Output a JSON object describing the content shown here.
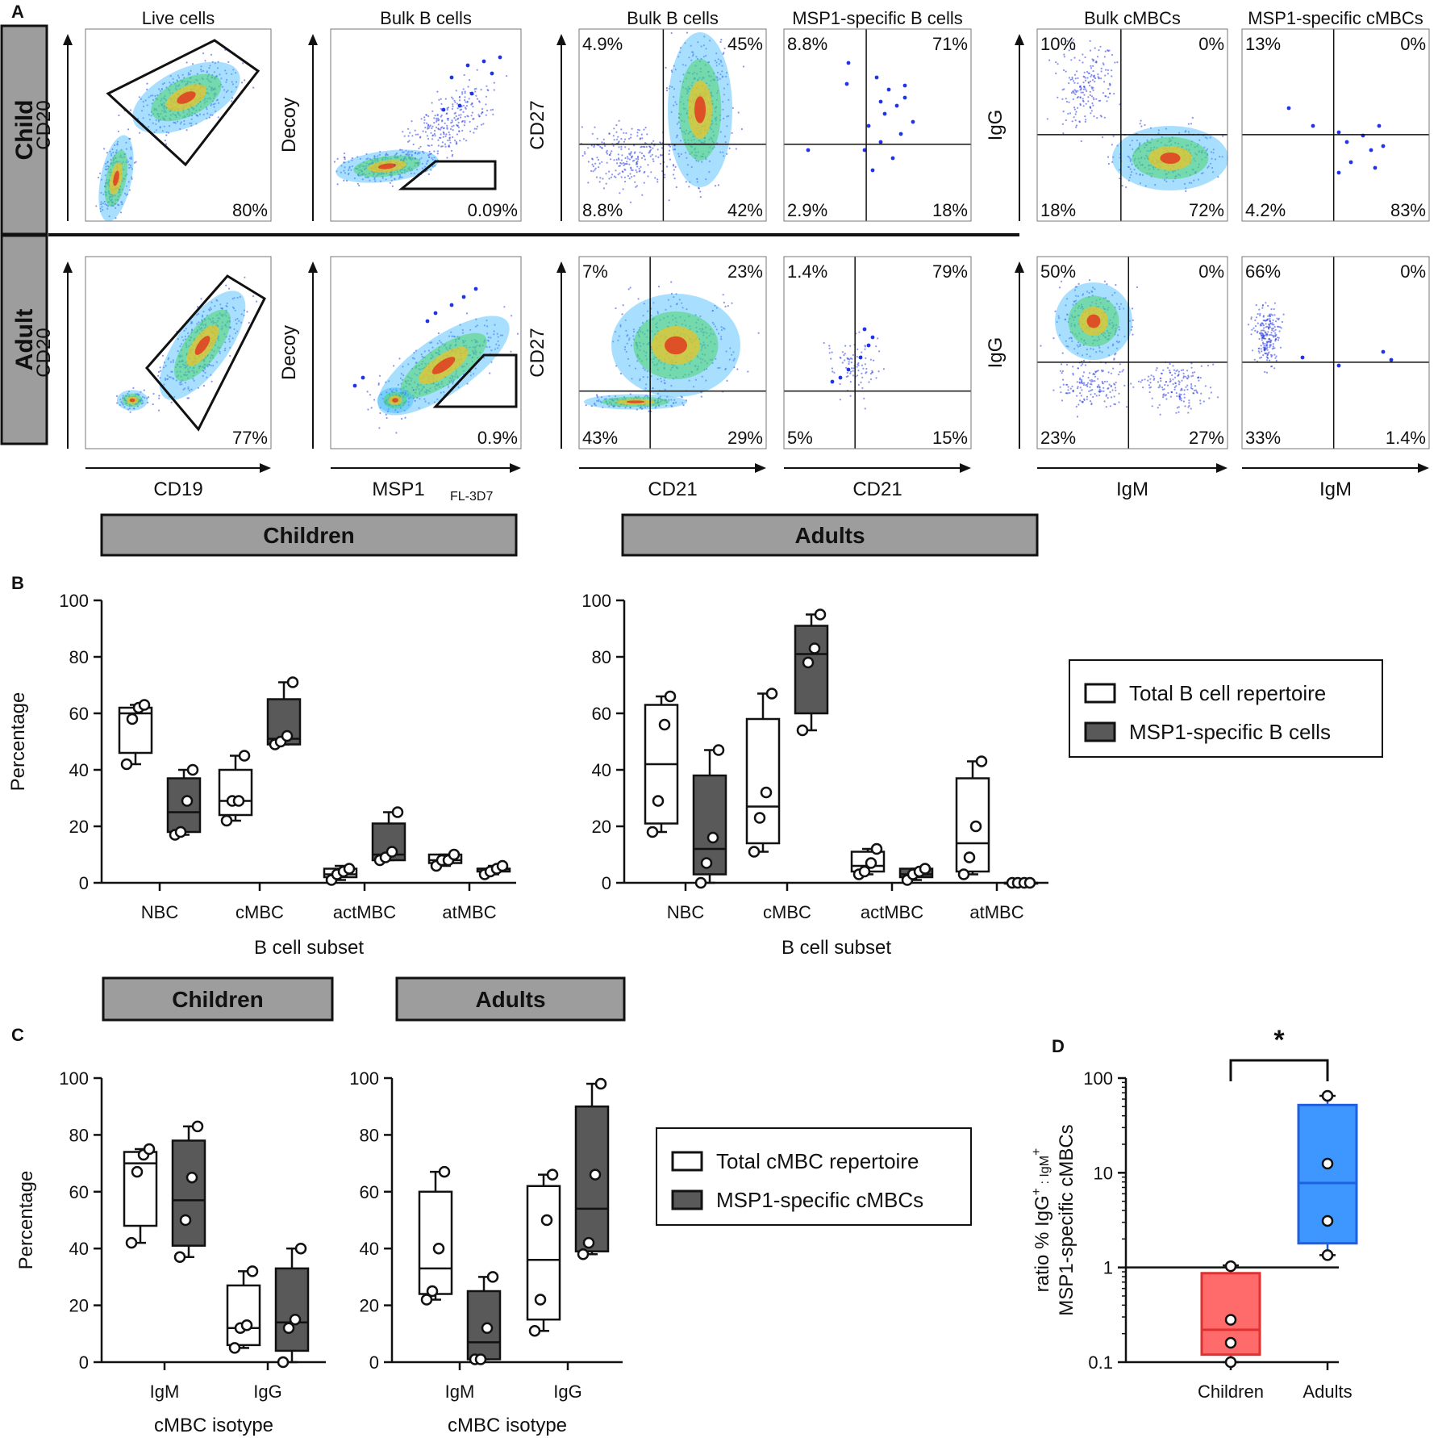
{
  "panel_labels": {
    "a": "A",
    "b": "B",
    "c": "C",
    "d": "D"
  },
  "panel_a": {
    "rows": [
      {
        "label": "Child",
        "plots": [
          {
            "title": "Live cells",
            "ylabel": "CD20",
            "pct": [
              "80%"
            ]
          },
          {
            "title": "Bulk B cells",
            "ylabel": "Decoy",
            "pct": [
              "0.09%"
            ]
          },
          {
            "title": "Bulk B cells",
            "ylabel": "CD27",
            "quadrants": [
              "4.9%",
              "45%",
              "8.8%",
              "42%"
            ]
          },
          {
            "title": "MSP1-specific B cells",
            "quadrants": [
              "8.8%",
              "71%",
              "2.9%",
              "18%"
            ]
          },
          {
            "title": "Bulk cMBCs",
            "ylabel": "IgG",
            "quadrants": [
              "10%",
              "0%",
              "18%",
              "72%"
            ]
          },
          {
            "title": "MSP1-specific cMBCs",
            "quadrants": [
              "13%",
              "0%",
              "4.2%",
              "83%"
            ]
          }
        ]
      },
      {
        "label": "Adult",
        "plots": [
          {
            "ylabel": "CD20",
            "xlabel": "CD19",
            "pct": [
              "77%"
            ]
          },
          {
            "ylabel": "Decoy",
            "xlabel": "MSP1",
            "xlabel_sub": "FL-3D7",
            "pct": [
              "0.9%"
            ]
          },
          {
            "ylabel": "CD27",
            "xlabel": "CD21",
            "quadrants": [
              "7%",
              "23%",
              "43%",
              "29%"
            ]
          },
          {
            "xlabel": "CD21",
            "quadrants": [
              "1.4%",
              "79%",
              "5%",
              "15%"
            ]
          },
          {
            "ylabel": "IgG",
            "xlabel": "IgM",
            "quadrants": [
              "50%",
              "0%",
              "23%",
              "27%"
            ]
          },
          {
            "xlabel": "IgM",
            "quadrants": [
              "66%",
              "0%",
              "33%",
              "1.4%"
            ]
          }
        ]
      }
    ]
  },
  "headers": {
    "b_children": "Children",
    "b_adults": "Adults",
    "c_children": "Children",
    "c_adults": "Adults"
  },
  "legend_b": {
    "total": "Total B cell repertoire",
    "specific": "MSP1-specific B cells"
  },
  "legend_c": {
    "total": "Total cMBC repertoire",
    "specific": "MSP1-specific cMBCs"
  },
  "chart_data": [
    {
      "type": "box",
      "panel": "B",
      "group": "Children",
      "title": "",
      "xlabel": "B cell subset",
      "ylabel": "Percentage",
      "ylim": [
        0,
        100
      ],
      "yticks": [
        "0",
        "20",
        "40",
        "60",
        "80",
        "100"
      ],
      "categories": [
        "NBC",
        "cMBC",
        "actMBC",
        "atMBC"
      ],
      "series": [
        {
          "name": "Total B cell repertoire",
          "color": "#ffffff",
          "boxes": [
            {
              "min": 42,
              "q1": 46,
              "median": 60,
              "q3": 62,
              "max": 63,
              "points": [
                42,
                58,
                62,
                63
              ]
            },
            {
              "min": 22,
              "q1": 24,
              "median": 29,
              "q3": 40,
              "max": 45,
              "points": [
                22,
                29,
                29,
                45
              ]
            },
            {
              "min": 1,
              "q1": 2,
              "median": 3,
              "q3": 5,
              "max": 6,
              "points": [
                1,
                3,
                4,
                5
              ]
            },
            {
              "min": 6,
              "q1": 7,
              "median": 8,
              "q3": 10,
              "max": 10,
              "points": [
                6,
                8,
                8,
                10
              ]
            }
          ]
        },
        {
          "name": "MSP1-specific B cells",
          "color": "#595959",
          "boxes": [
            {
              "min": 17,
              "q1": 18,
              "median": 25,
              "q3": 37,
              "max": 40,
              "points": [
                17,
                18,
                29,
                40
              ]
            },
            {
              "min": 49,
              "q1": 49,
              "median": 51,
              "q3": 65,
              "max": 71,
              "points": [
                49,
                50,
                52,
                71
              ]
            },
            {
              "min": 8,
              "q1": 8,
              "median": 10,
              "q3": 21,
              "max": 25,
              "points": [
                8,
                9,
                11,
                25
              ]
            },
            {
              "min": 3,
              "q1": 4,
              "median": 5,
              "q3": 5,
              "max": 6,
              "points": [
                3,
                4,
                5,
                6
              ]
            }
          ]
        }
      ]
    },
    {
      "type": "box",
      "panel": "B",
      "group": "Adults",
      "title": "",
      "xlabel": "B cell subset",
      "ylabel": "",
      "ylim": [
        0,
        100
      ],
      "yticks": [
        "0",
        "20",
        "40",
        "60",
        "80",
        "100"
      ],
      "categories": [
        "NBC",
        "cMBC",
        "actMBC",
        "atMBC"
      ],
      "series": [
        {
          "name": "Total B cell repertoire",
          "color": "#ffffff",
          "boxes": [
            {
              "min": 18,
              "q1": 21,
              "median": 42,
              "q3": 63,
              "max": 66,
              "points": [
                18,
                29,
                56,
                66
              ]
            },
            {
              "min": 11,
              "q1": 14,
              "median": 27,
              "q3": 58,
              "max": 67,
              "points": [
                11,
                23,
                32,
                67
              ]
            },
            {
              "min": 3,
              "q1": 4,
              "median": 6,
              "q3": 11,
              "max": 12,
              "points": [
                3,
                4,
                7,
                12
              ]
            },
            {
              "min": 3,
              "q1": 4,
              "median": 14,
              "q3": 37,
              "max": 43,
              "points": [
                3,
                9,
                20,
                43
              ]
            }
          ]
        },
        {
          "name": "MSP1-specific B cells",
          "color": "#595959",
          "boxes": [
            {
              "min": 0,
              "q1": 3,
              "median": 12,
              "q3": 38,
              "max": 47,
              "points": [
                0,
                7,
                16,
                47
              ]
            },
            {
              "min": 54,
              "q1": 60,
              "median": 81,
              "q3": 91,
              "max": 95,
              "points": [
                54,
                78,
                83,
                95
              ]
            },
            {
              "min": 1,
              "q1": 2,
              "median": 3,
              "q3": 5,
              "max": 5,
              "points": [
                1,
                3,
                4,
                5
              ]
            },
            {
              "min": 0,
              "q1": 0,
              "median": 0,
              "q3": 0,
              "max": 0,
              "points": [
                0,
                0,
                0,
                0
              ]
            }
          ]
        }
      ]
    },
    {
      "type": "box",
      "panel": "C",
      "group": "Children",
      "title": "",
      "xlabel": "cMBC isotype",
      "ylabel": "Percentage",
      "ylim": [
        0,
        100
      ],
      "yticks": [
        "0",
        "20",
        "40",
        "60",
        "80",
        "100"
      ],
      "categories": [
        "IgM",
        "IgG"
      ],
      "series": [
        {
          "name": "Total cMBC repertoire",
          "color": "#ffffff",
          "boxes": [
            {
              "min": 42,
              "q1": 48,
              "median": 70,
              "q3": 74,
              "max": 75,
              "points": [
                42,
                67,
                73,
                75
              ]
            },
            {
              "min": 5,
              "q1": 6,
              "median": 12,
              "q3": 27,
              "max": 32,
              "points": [
                5,
                12,
                13,
                32
              ]
            }
          ]
        },
        {
          "name": "MSP1-specific cMBCs",
          "color": "#595959",
          "boxes": [
            {
              "min": 37,
              "q1": 41,
              "median": 57,
              "q3": 78,
              "max": 83,
              "points": [
                37,
                50,
                65,
                83
              ]
            },
            {
              "min": 0,
              "q1": 4,
              "median": 14,
              "q3": 33,
              "max": 40,
              "points": [
                0,
                12,
                15,
                40
              ]
            }
          ]
        }
      ]
    },
    {
      "type": "box",
      "panel": "C",
      "group": "Adults",
      "title": "",
      "xlabel": "cMBC isotype",
      "ylabel": "",
      "ylim": [
        0,
        100
      ],
      "yticks": [
        "0",
        "20",
        "40",
        "60",
        "80",
        "100"
      ],
      "categories": [
        "IgM",
        "IgG"
      ],
      "series": [
        {
          "name": "Total cMBC repertoire",
          "color": "#ffffff",
          "boxes": [
            {
              "min": 22,
              "q1": 24,
              "median": 33,
              "q3": 60,
              "max": 67,
              "points": [
                22,
                25,
                40,
                67
              ]
            },
            {
              "min": 11,
              "q1": 15,
              "median": 36,
              "q3": 62,
              "max": 66,
              "points": [
                11,
                22,
                50,
                66
              ]
            }
          ]
        },
        {
          "name": "MSP1-specific cMBCs",
          "color": "#595959",
          "boxes": [
            {
              "min": 1,
              "q1": 1,
              "median": 7,
              "q3": 25,
              "max": 30,
              "points": [
                1,
                1,
                12,
                30
              ]
            },
            {
              "min": 38,
              "q1": 39,
              "median": 54,
              "q3": 90,
              "max": 98,
              "points": [
                38,
                42,
                66,
                98
              ]
            }
          ]
        }
      ]
    },
    {
      "type": "box",
      "panel": "D",
      "title": "",
      "xlabel": "",
      "ylabel": "ratio % IgG⁺ : IgM⁺ MSP1-specific cMBCs",
      "ylabel_line1": "ratio % IgG",
      "ylabel_sup1": "+",
      "ylabel_mid": " : IgM",
      "ylabel_sup2": "+",
      "ylabel_line2": "MSP1-specific cMBCs",
      "yscale": "log",
      "ylim": [
        0.1,
        100
      ],
      "yticks": [
        "0.1",
        "1",
        "10",
        "100"
      ],
      "reference_line": 1,
      "significance": "*",
      "categories": [
        "Children",
        "Adults"
      ],
      "series": [
        {
          "name": "Children",
          "color": "#ff6b6b",
          "edge": "#e03030",
          "box": {
            "min": 0.1,
            "q1": 0.12,
            "median": 0.22,
            "q3": 0.87,
            "max": 1.05,
            "points": [
              0.1,
              0.16,
              0.28,
              1.03
            ]
          }
        },
        {
          "name": "Adults",
          "color": "#3d97ff",
          "edge": "#1f5fe0",
          "box": {
            "min": 1.35,
            "q1": 1.8,
            "median": 7.8,
            "q3": 52,
            "max": 65,
            "points": [
              1.35,
              3.1,
              12.5,
              65
            ]
          }
        }
      ]
    }
  ]
}
